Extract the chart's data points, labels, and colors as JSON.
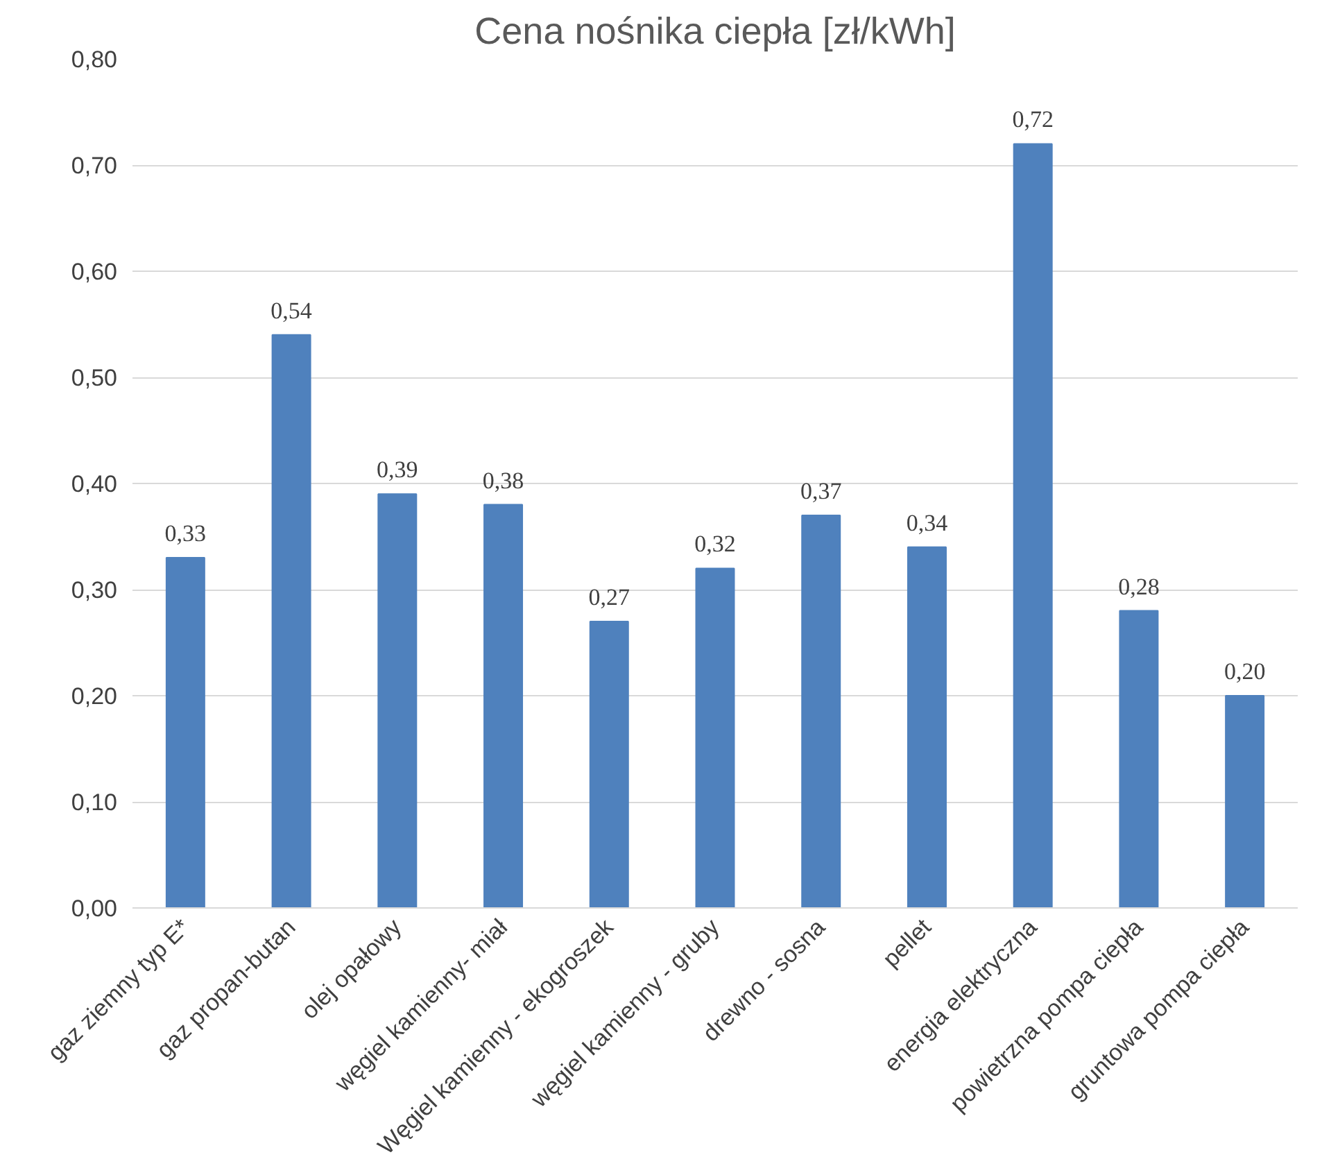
{
  "chart_data": {
    "type": "bar",
    "title": "Cena nośnika ciepła [zł/kWh]",
    "categories": [
      "gaz ziemny typ E*",
      "gaz propan-butan",
      "olej opałowy",
      "węgiel kamienny- miał",
      "Węgiel kamienny - ekogroszek",
      "węgiel kamienny - gruby",
      "drewno - sosna",
      "pellet",
      "energia elektryczna",
      "powietrzna pompa ciepła",
      "gruntowa pompa ciepła"
    ],
    "values": [
      0.33,
      0.54,
      0.39,
      0.38,
      0.27,
      0.32,
      0.37,
      0.34,
      0.72,
      0.28,
      0.2
    ],
    "value_labels": [
      "0,33",
      "0,54",
      "0,39",
      "0,38",
      "0,27",
      "0,32",
      "0,37",
      "0,34",
      "0,72",
      "0,28",
      "0,20"
    ],
    "color": "#4f81bd",
    "ylim": [
      0,
      0.8
    ],
    "yticks": [
      {
        "value": 0,
        "label": "0,00"
      },
      {
        "value": 0.1,
        "label": "0,10"
      },
      {
        "value": 0.2,
        "label": "0,20"
      },
      {
        "value": 0.3,
        "label": "0,30"
      },
      {
        "value": 0.4,
        "label": "0,40"
      },
      {
        "value": 0.5,
        "label": "0,50"
      },
      {
        "value": 0.6,
        "label": "0,60"
      },
      {
        "value": 0.7,
        "label": "0,70"
      },
      {
        "value": 0.8,
        "label": "0,80"
      }
    ],
    "grid": "y"
  }
}
